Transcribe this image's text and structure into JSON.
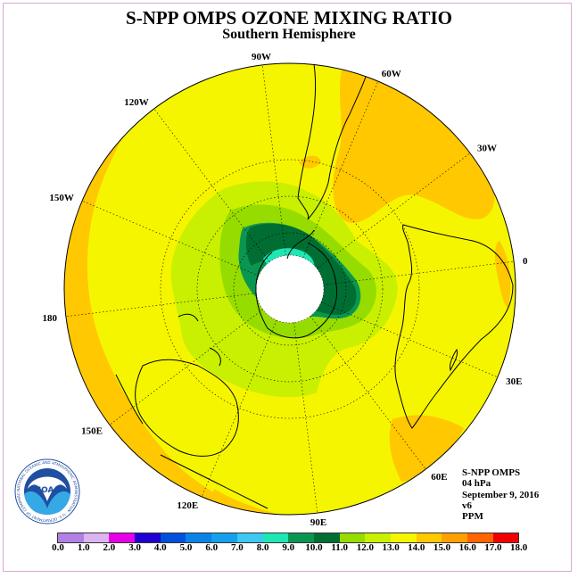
{
  "title": "S-NPP OMPS OZONE MIXING RATIO",
  "subtitle": "Southern Hemisphere",
  "longitude_labels": [
    {
      "text": "90W",
      "lon": -90
    },
    {
      "text": "60W",
      "lon": -60
    },
    {
      "text": "30W",
      "lon": -30
    },
    {
      "text": "0",
      "lon": 0
    },
    {
      "text": "30E",
      "lon": 30
    },
    {
      "text": "60E",
      "lon": 60
    },
    {
      "text": "90E",
      "lon": 90
    },
    {
      "text": "120E",
      "lon": 120
    },
    {
      "text": "150E",
      "lon": 150
    },
    {
      "text": "180",
      "lon": 180
    },
    {
      "text": "150W",
      "lon": -150
    },
    {
      "text": "120W",
      "lon": -120
    }
  ],
  "info": {
    "instrument": "S-NPP OMPS",
    "level": "04 hPa",
    "date": "September 9, 2016",
    "version": "v6",
    "units": "PPM"
  },
  "colorbar": {
    "ticks": [
      "0.0",
      "1.0",
      "2.0",
      "3.0",
      "4.0",
      "5.0",
      "6.0",
      "7.0",
      "8.0",
      "9.0",
      "10.0",
      "11.0",
      "12.0",
      "13.0",
      "14.0",
      "15.0",
      "16.0",
      "17.0",
      "18.0"
    ],
    "colors": [
      "#b27fe5",
      "#dcb4f0",
      "#e600e6",
      "#1e00d2",
      "#0050dc",
      "#0a82e6",
      "#14a0eb",
      "#3cc8f0",
      "#1ee6b4",
      "#0a9650",
      "#006e32",
      "#96dc00",
      "#c8f000",
      "#f5f500",
      "#ffc800",
      "#ffa000",
      "#ff6400",
      "#f00000",
      "#8c5a3c"
    ]
  },
  "logo": {
    "text": "NOAA",
    "ring_text": "NATIONAL OCEANIC AND ATMOSPHERIC ADMINISTRATION · U.S. DEPARTMENT OF COMMERCE"
  },
  "colors": {
    "background_field": "#f5f500",
    "high_band": "#ffc800",
    "low_core": "#006e32"
  }
}
